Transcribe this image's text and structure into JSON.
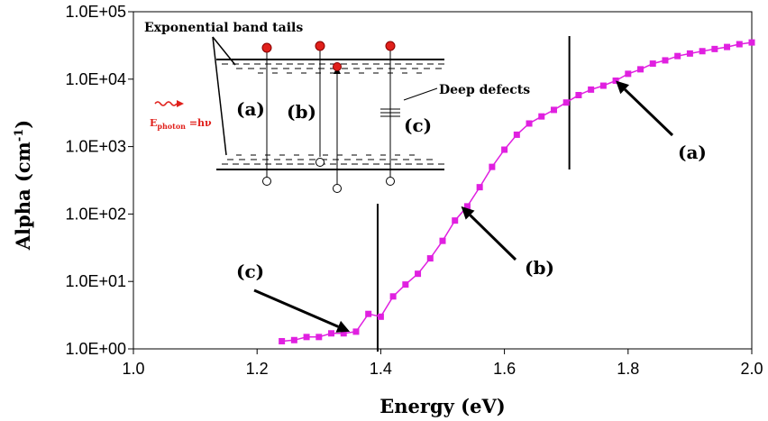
{
  "chart_data": {
    "type": "scatter",
    "title": "",
    "xlabel": "Energy (eV)",
    "ylabel": "Alpha (cm-1)",
    "xlim": [
      1.0,
      2.0
    ],
    "ylim": [
      1,
      100000
    ],
    "y_scale": "log",
    "grid": false,
    "x_ticks": [
      "1.0",
      "1.2",
      "1.4",
      "1.6",
      "1.8",
      "2.0"
    ],
    "y_ticks": [
      "1.0E+00",
      "1.0E+01",
      "1.0E+02",
      "1.0E+03",
      "1.0E+04",
      "1.0E+05"
    ],
    "series": [
      {
        "color": "#e020e0",
        "x": [
          1.24,
          1.26,
          1.28,
          1.3,
          1.32,
          1.34,
          1.36,
          1.38,
          1.4,
          1.42,
          1.44,
          1.46,
          1.48,
          1.5,
          1.52,
          1.54,
          1.56,
          1.58,
          1.6,
          1.62,
          1.64,
          1.66,
          1.68,
          1.7,
          1.72,
          1.74,
          1.76,
          1.78,
          1.8,
          1.82,
          1.84,
          1.86,
          1.88,
          1.9,
          1.92,
          1.94,
          1.96,
          1.98,
          2.0
        ],
        "y": [
          1.3,
          1.35,
          1.5,
          1.5,
          1.7,
          1.7,
          1.8,
          3.3,
          3.0,
          6.0,
          9.0,
          13,
          22,
          40,
          80,
          130,
          250,
          500,
          900,
          1500,
          2200,
          2800,
          3500,
          4500,
          5800,
          7000,
          8000,
          9500,
          12000,
          14000,
          17000,
          19000,
          22000,
          24000,
          26000,
          28000,
          30000,
          33000,
          35000
        ]
      }
    ],
    "vertical_lines_x": [
      1.395,
      1.705
    ],
    "annotations": [
      {
        "label": "(c)",
        "arrow_to": {
          "x": 1.35,
          "y": 1.8
        }
      },
      {
        "label": "(b)",
        "arrow_to": {
          "x": 1.53,
          "y": 130
        }
      },
      {
        "label": "(a)",
        "arrow_to": {
          "x": 1.78,
          "y": 9500
        }
      }
    ],
    "inset": {
      "title": "Exponential band tails",
      "deep_defects": "Deep defects",
      "labels": [
        "(a)",
        "(b)",
        "(c)"
      ],
      "photon_label": "E",
      "photon_sub": "photon",
      "photon_eq": " =hν"
    }
  }
}
